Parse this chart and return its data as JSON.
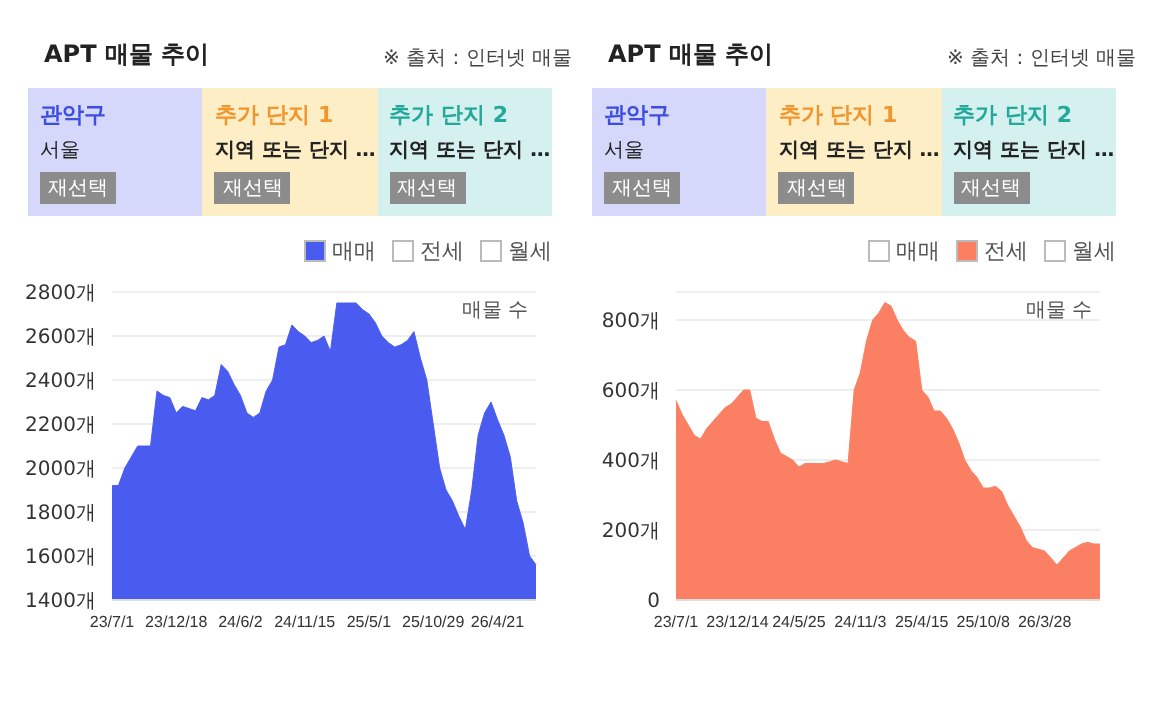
{
  "chart_data": [
    {
      "type": "area",
      "title": "APT 매물 추이",
      "ylabel": "매물 수",
      "annotations": [
        "※ 출처 : 인터넷 매물",
        "관악구",
        "서울",
        "재선택",
        "추가 단지 1",
        "지역 또는 단지 …",
        "재선택",
        "추가 단지 2",
        "지역 또는 단지 …",
        "재선택"
      ],
      "categories": [
        "23/7/1",
        null,
        null,
        null,
        null,
        null,
        null,
        null,
        null,
        null,
        "23/12/18",
        null,
        null,
        null,
        null,
        null,
        null,
        null,
        null,
        null,
        "24/6/2",
        null,
        null,
        null,
        null,
        null,
        null,
        null,
        null,
        null,
        "24/11/15",
        null,
        null,
        null,
        null,
        null,
        null,
        null,
        null,
        null,
        "25/5/1",
        null,
        null,
        null,
        null,
        null,
        null,
        null,
        null,
        null,
        "25/10/29",
        null,
        null,
        null,
        null,
        null,
        null,
        null,
        null,
        null,
        "26/4/21",
        null,
        null,
        null,
        null,
        null,
        null
      ],
      "series": [
        {
          "name": "매매",
          "color": "#4a5cf0",
          "values": [
            1920,
            1920,
            2000,
            2050,
            2100,
            2100,
            2100,
            2350,
            2330,
            2320,
            2250,
            2280,
            2270,
            2260,
            2320,
            2310,
            2330,
            2470,
            2440,
            2380,
            2330,
            2250,
            2230,
            2250,
            2350,
            2400,
            2550,
            2560,
            2650,
            2620,
            2600,
            2570,
            2580,
            2600,
            2530,
            2750,
            2750,
            2750,
            2750,
            2720,
            2700,
            2660,
            2600,
            2570,
            2550,
            2560,
            2580,
            2620,
            2500,
            2400,
            2200,
            2000,
            1900,
            1850,
            1780,
            1720,
            1900,
            2150,
            2250,
            2300,
            2220,
            2150,
            2050,
            1850,
            1750,
            1600,
            1560
          ]
        },
        {
          "name": "전세",
          "color": "#ffffff",
          "values": [
            null,
            null,
            null,
            null,
            null,
            null,
            null,
            null,
            null,
            null,
            null,
            null,
            null,
            null,
            null,
            null,
            null,
            null,
            null,
            null,
            null,
            null,
            null,
            null,
            null,
            null,
            null,
            null,
            null,
            null,
            null,
            null,
            null,
            null,
            null,
            null,
            null,
            null,
            null,
            null,
            null,
            null,
            null,
            null,
            null,
            null,
            null,
            null,
            null,
            null,
            null,
            null,
            null,
            null,
            null,
            null,
            null,
            null,
            null,
            null,
            null,
            null,
            null,
            null,
            null,
            null,
            null
          ]
        },
        {
          "name": "월세",
          "color": "#ffffff",
          "values": [
            null,
            null,
            null,
            null,
            null,
            null,
            null,
            null,
            null,
            null,
            null,
            null,
            null,
            null,
            null,
            null,
            null,
            null,
            null,
            null,
            null,
            null,
            null,
            null,
            null,
            null,
            null,
            null,
            null,
            null,
            null,
            null,
            null,
            null,
            null,
            null,
            null,
            null,
            null,
            null,
            null,
            null,
            null,
            null,
            null,
            null,
            null,
            null,
            null,
            null,
            null,
            null,
            null,
            null,
            null,
            null,
            null,
            null,
            null,
            null,
            null,
            null,
            null,
            null,
            null,
            null,
            null
          ]
        }
      ],
      "ylim": [
        1400,
        2800
      ],
      "yticks": [
        {
          "value": 1400,
          "label": "1400개"
        },
        {
          "value": 1600,
          "label": "1600개"
        },
        {
          "value": 1800,
          "label": "1800개"
        },
        {
          "value": 2000,
          "label": "2000개"
        },
        {
          "value": 2200,
          "label": "2200개"
        },
        {
          "value": 2400,
          "label": "2400개"
        },
        {
          "value": 2600,
          "label": "2600개"
        },
        {
          "value": 2800,
          "label": "2800개"
        }
      ],
      "grid": "y",
      "legend": "top right"
    },
    {
      "type": "area",
      "title": "APT 매물 추이",
      "ylabel": "매물 수",
      "annotations": [
        "※ 출처 : 인터넷 매물",
        "관악구",
        "서울",
        "재선택",
        "추가 단지 1",
        "지역 또는 단지 …",
        "재선택",
        "추가 단지 2",
        "지역 또는 단지 …",
        "재선택"
      ],
      "categories": [
        "23/7/1",
        null,
        null,
        null,
        null,
        null,
        null,
        null,
        null,
        null,
        "23/12/14",
        null,
        null,
        null,
        null,
        null,
        null,
        null,
        null,
        null,
        "24/5/25",
        null,
        null,
        null,
        null,
        null,
        null,
        null,
        null,
        null,
        "24/11/3",
        null,
        null,
        null,
        null,
        null,
        null,
        null,
        null,
        null,
        "25/4/15",
        null,
        null,
        null,
        null,
        null,
        null,
        null,
        null,
        null,
        "25/10/8",
        null,
        null,
        null,
        null,
        null,
        null,
        null,
        null,
        null,
        "26/3/28",
        null,
        null,
        null,
        null,
        null,
        null,
        null,
        null,
        null
      ],
      "series": [
        {
          "name": "매매",
          "color": "#ffffff",
          "values": [
            null,
            null,
            null,
            null,
            null,
            null,
            null,
            null,
            null,
            null,
            null,
            null,
            null,
            null,
            null,
            null,
            null,
            null,
            null,
            null,
            null,
            null,
            null,
            null,
            null,
            null,
            null,
            null,
            null,
            null,
            null,
            null,
            null,
            null,
            null,
            null,
            null,
            null,
            null,
            null,
            null,
            null,
            null,
            null,
            null,
            null,
            null,
            null,
            null,
            null,
            null,
            null,
            null,
            null,
            null,
            null,
            null,
            null,
            null,
            null,
            null,
            null,
            null,
            null,
            null,
            null,
            null,
            null,
            null,
            null
          ]
        },
        {
          "name": "전세",
          "color": "#fb8063",
          "values": [
            570,
            530,
            500,
            470,
            460,
            490,
            510,
            530,
            550,
            560,
            580,
            600,
            600,
            520,
            510,
            510,
            460,
            420,
            410,
            400,
            380,
            390,
            390,
            390,
            390,
            395,
            400,
            395,
            390,
            600,
            650,
            740,
            800,
            820,
            850,
            840,
            800,
            770,
            750,
            740,
            600,
            580,
            540,
            540,
            520,
            490,
            450,
            400,
            370,
            350,
            320,
            320,
            325,
            310,
            270,
            240,
            210,
            170,
            150,
            145,
            140,
            120,
            100,
            120,
            140,
            150,
            160,
            165,
            160,
            160
          ]
        },
        {
          "name": "월세",
          "color": "#ffffff",
          "values": [
            null,
            null,
            null,
            null,
            null,
            null,
            null,
            null,
            null,
            null,
            null,
            null,
            null,
            null,
            null,
            null,
            null,
            null,
            null,
            null,
            null,
            null,
            null,
            null,
            null,
            null,
            null,
            null,
            null,
            null,
            null,
            null,
            null,
            null,
            null,
            null,
            null,
            null,
            null,
            null,
            null,
            null,
            null,
            null,
            null,
            null,
            null,
            null,
            null,
            null,
            null,
            null,
            null,
            null,
            null,
            null,
            null,
            null,
            null,
            null,
            null,
            null,
            null,
            null,
            null,
            null,
            null,
            null,
            null,
            null
          ]
        }
      ],
      "ylim": [
        0,
        880
      ],
      "yticks": [
        0,
        {
          "value": 200,
          "label": "200개"
        },
        {
          "value": 400,
          "label": "400개"
        },
        {
          "value": 600,
          "label": "600개"
        },
        {
          "value": 800,
          "label": "800개"
        }
      ],
      "grid": "y",
      "legend": "top right"
    }
  ]
}
